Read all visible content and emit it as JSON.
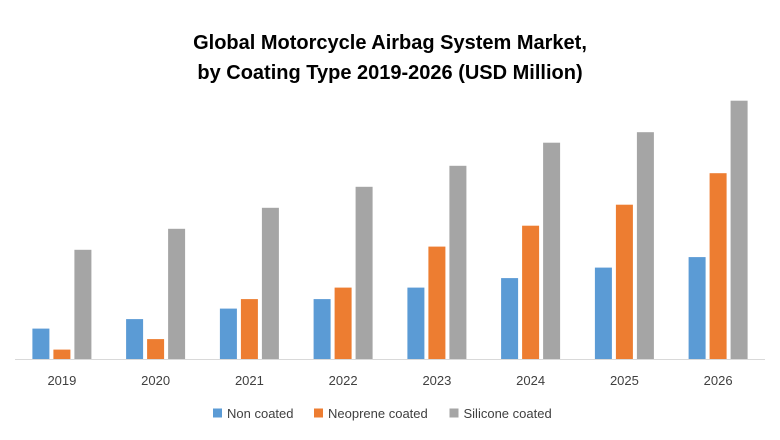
{
  "chart_data": {
    "type": "bar",
    "title_lines": [
      "Global Motorcycle Airbag System Market,",
      "by Coating Type 2019-2026 (USD Million)"
    ],
    "xlabel": "",
    "ylabel": "",
    "categories": [
      "2019",
      "2020",
      "2021",
      "2022",
      "2023",
      "2024",
      "2025",
      "2026"
    ],
    "series": [
      {
        "name": "Non coated",
        "color": "#5B9BD5",
        "values": [
          29,
          38,
          48,
          57,
          68,
          77,
          87,
          97
        ]
      },
      {
        "name": "Neoprene coated",
        "color": "#ED7D31",
        "values": [
          9,
          19,
          57,
          68,
          107,
          127,
          147,
          177
        ]
      },
      {
        "name": "Silicone coated",
        "color": "#A5A5A5",
        "values": [
          104,
          124,
          144,
          164,
          184,
          206,
          216,
          246
        ]
      }
    ],
    "ylim": [
      0,
      260
    ],
    "grid": false,
    "legend_position": "bottom"
  }
}
